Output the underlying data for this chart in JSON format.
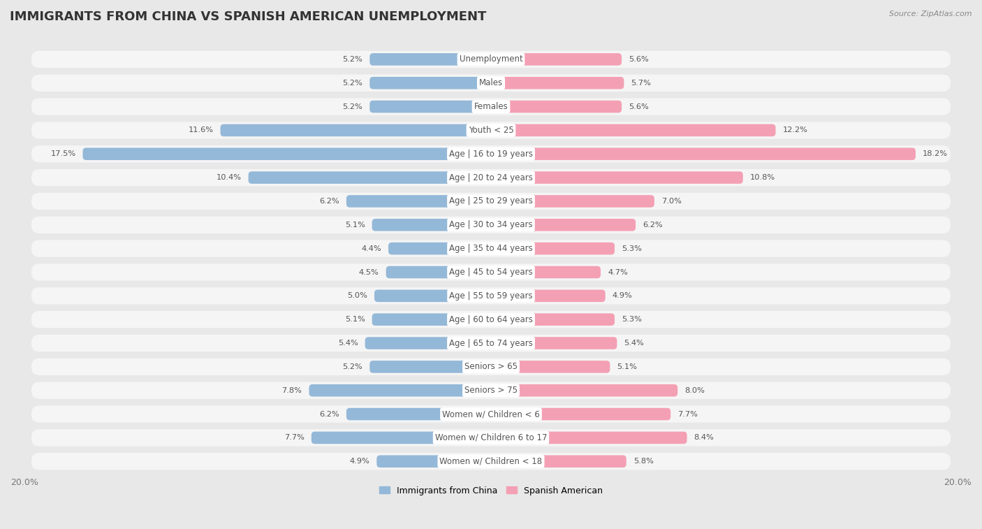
{
  "title": "IMMIGRANTS FROM CHINA VS SPANISH AMERICAN UNEMPLOYMENT",
  "source": "Source: ZipAtlas.com",
  "categories": [
    "Unemployment",
    "Males",
    "Females",
    "Youth < 25",
    "Age | 16 to 19 years",
    "Age | 20 to 24 years",
    "Age | 25 to 29 years",
    "Age | 30 to 34 years",
    "Age | 35 to 44 years",
    "Age | 45 to 54 years",
    "Age | 55 to 59 years",
    "Age | 60 to 64 years",
    "Age | 65 to 74 years",
    "Seniors > 65",
    "Seniors > 75",
    "Women w/ Children < 6",
    "Women w/ Children 6 to 17",
    "Women w/ Children < 18"
  ],
  "china_values": [
    5.2,
    5.2,
    5.2,
    11.6,
    17.5,
    10.4,
    6.2,
    5.1,
    4.4,
    4.5,
    5.0,
    5.1,
    5.4,
    5.2,
    7.8,
    6.2,
    7.7,
    4.9
  ],
  "spanish_values": [
    5.6,
    5.7,
    5.6,
    12.2,
    18.2,
    10.8,
    7.0,
    6.2,
    5.3,
    4.7,
    4.9,
    5.3,
    5.4,
    5.1,
    8.0,
    7.7,
    8.4,
    5.8
  ],
  "china_color": "#94b8d8",
  "spanish_color": "#f4a0b4",
  "china_label": "Immigrants from China",
  "spanish_label": "Spanish American",
  "bar_height": 0.52,
  "xlim": 20.0,
  "background_color": "#e8e8e8",
  "row_color": "#f5f5f5",
  "title_fontsize": 13,
  "label_fontsize": 8.5,
  "value_fontsize": 8.2
}
